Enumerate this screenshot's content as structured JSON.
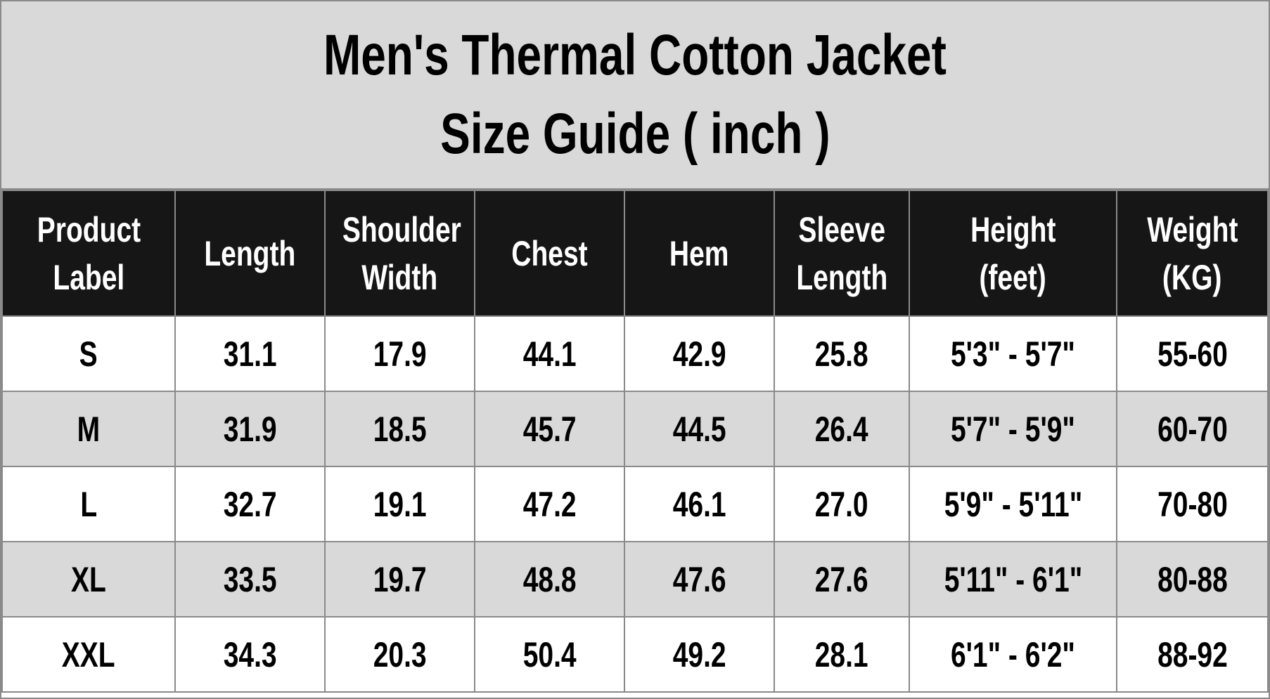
{
  "title": {
    "line1": "Men's Thermal Cotton Jacket",
    "line2": "Size Guide ( inch )"
  },
  "colors": {
    "title_bg": "#d9d9d9",
    "header_bg": "#161616",
    "alt_row_bg": "#d9d9d9",
    "border": "#8a8a8a"
  },
  "table": {
    "headers": [
      [
        "Product",
        "Label"
      ],
      [
        "Length"
      ],
      [
        "Shoulder",
        "Width"
      ],
      [
        "Chest"
      ],
      [
        "Hem"
      ],
      [
        "Sleeve",
        "Length"
      ],
      [
        "Height",
        "(feet)"
      ],
      [
        "Weight",
        "(KG)"
      ]
    ],
    "rows": [
      [
        "S",
        "31.1",
        "17.9",
        "44.1",
        "42.9",
        "25.8",
        "5'3\" - 5'7\"",
        "55-60"
      ],
      [
        "M",
        "31.9",
        "18.5",
        "45.7",
        "44.5",
        "26.4",
        "5'7\" - 5'9\"",
        "60-70"
      ],
      [
        "L",
        "32.7",
        "19.1",
        "47.2",
        "46.1",
        "27.0",
        "5'9\" - 5'11\"",
        "70-80"
      ],
      [
        "XL",
        "33.5",
        "19.7",
        "48.8",
        "47.6",
        "27.6",
        "5'11\" - 6'1\"",
        "80-88"
      ],
      [
        "XXL",
        "34.3",
        "20.3",
        "50.4",
        "49.2",
        "28.1",
        "6'1\" - 6'2\"",
        "88-92"
      ]
    ]
  }
}
